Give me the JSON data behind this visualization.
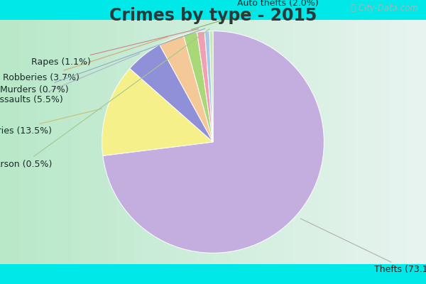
{
  "title": "Crimes by type - 2015",
  "labels": [
    "Thefts",
    "Burglaries",
    "Assaults",
    "Robberies",
    "Auto thefts",
    "Rapes",
    "Murders",
    "Arson"
  ],
  "values": [
    73.1,
    13.5,
    5.5,
    3.7,
    2.0,
    1.1,
    0.7,
    0.5
  ],
  "colors": [
    "#c4aee0",
    "#f5f08a",
    "#9090d8",
    "#f5c898",
    "#a8d878",
    "#f0a0b0",
    "#a8c8e8",
    "#c8e8b8"
  ],
  "cyan_border": "#00e8e8",
  "bg_color_left": "#b8e8c8",
  "bg_color_right": "#e8f4f0",
  "title_fontsize": 17,
  "title_color": "#2a3a3a",
  "label_fontsize": 9,
  "watermark_color": "#a0b8b8",
  "label_color": "#1a2a2a"
}
